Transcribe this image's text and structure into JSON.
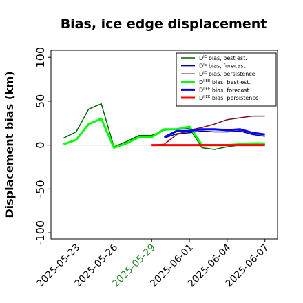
{
  "chart_data": {
    "type": "line",
    "title": "Bias, ice edge displacement",
    "ylabel": "Displacement bias (km)",
    "xlabel": "",
    "xlim": [
      "2025-05-21",
      "2025-06-08"
    ],
    "ylim": [
      -107,
      108
    ],
    "yticks": [
      -100,
      -50,
      0,
      50,
      100
    ],
    "xticks": [
      {
        "date": "2025-05-23",
        "label": "2025-05-23",
        "color": "#000000"
      },
      {
        "date": "2025-05-26",
        "label": "2025-05-26",
        "color": "#000000"
      },
      {
        "date": "2025-05-29",
        "label": "2025-05-29",
        "color": "#228b22"
      },
      {
        "date": "2025-06-01",
        "label": "2025-06-01",
        "color": "#000000"
      },
      {
        "date": "2025-06-04",
        "label": "2025-06-04",
        "color": "#000000"
      },
      {
        "date": "2025-06-07",
        "label": "2025-06-07",
        "color": "#000000"
      }
    ],
    "zero_line": {
      "from": "2025-05-22",
      "to": "2025-06-07",
      "color": "#808080"
    },
    "legend_position": "top-right",
    "grid": false,
    "series": [
      {
        "name": "D^IE bias, best est.",
        "legend_sup": "IE",
        "legend_text": "bias, best est.",
        "color": "#006400",
        "width": 1.5,
        "x": [
          "2025-05-22",
          "2025-05-23",
          "2025-05-24",
          "2025-05-25",
          "2025-05-26",
          "2025-05-27",
          "2025-05-28",
          "2025-05-29",
          "2025-05-30",
          "2025-05-31",
          "2025-06-01",
          "2025-06-02",
          "2025-06-03",
          "2025-06-04",
          "2025-06-05",
          "2025-06-06",
          "2025-06-07"
        ],
        "y": [
          8,
          15,
          41,
          47,
          -2,
          4,
          11,
          11,
          17,
          18,
          19,
          -3,
          -5,
          -2,
          0,
          1,
          1
        ]
      },
      {
        "name": "D^IE bias, forecast",
        "legend_sup": "IE",
        "legend_text": "bias, forecast",
        "color": "#00008b",
        "width": 1.5,
        "x": [
          "2025-05-30",
          "2025-05-31",
          "2025-06-01",
          "2025-06-02",
          "2025-06-03",
          "2025-06-04",
          "2025-06-05",
          "2025-06-06",
          "2025-06-07"
        ],
        "y": [
          8,
          13,
          14,
          16,
          15,
          15,
          16,
          12,
          10
        ]
      },
      {
        "name": "D^IE bias, persistence",
        "legend_sup": "IE",
        "legend_text": "bias, persistence",
        "color": "#7b0b1d",
        "width": 1.5,
        "x": [
          "2025-05-29",
          "2025-05-30",
          "2025-05-31",
          "2025-06-01",
          "2025-06-02",
          "2025-06-03",
          "2025-06-04",
          "2025-06-05",
          "2025-06-06",
          "2025-06-07"
        ],
        "y": [
          0,
          1,
          12,
          17,
          20,
          24,
          29,
          31,
          33,
          33
        ]
      },
      {
        "name": "D^IIEE bias, best est.",
        "legend_sup": "IIEE",
        "legend_text": "bias, best est.",
        "color": "#00ff00",
        "width": 3,
        "x": [
          "2025-05-22",
          "2025-05-23",
          "2025-05-24",
          "2025-05-25",
          "2025-05-26",
          "2025-05-27",
          "2025-05-28",
          "2025-05-29",
          "2025-05-30",
          "2025-05-31",
          "2025-06-01",
          "2025-06-02",
          "2025-06-03",
          "2025-06-04",
          "2025-06-05",
          "2025-06-06",
          "2025-06-07"
        ],
        "y": [
          1,
          6,
          24,
          30,
          -3,
          2,
          9,
          9,
          18,
          18,
          21,
          0,
          0,
          0,
          1,
          2,
          2
        ]
      },
      {
        "name": "D^IIEE bias, forecast",
        "legend_sup": "IIEE",
        "legend_text": "bias, forecast",
        "color": "#0000ff",
        "width": 3,
        "x": [
          "2025-05-30",
          "2025-05-31",
          "2025-06-01",
          "2025-06-02",
          "2025-06-03",
          "2025-06-04",
          "2025-06-05",
          "2025-06-06",
          "2025-06-07"
        ],
        "y": [
          9,
          16,
          16,
          18,
          18,
          17,
          18,
          14,
          12
        ]
      },
      {
        "name": "D^IIEE bias, persistence",
        "legend_sup": "IIEE",
        "legend_text": "bias, persistence",
        "color": "#ff0000",
        "width": 3,
        "x": [
          "2025-05-29",
          "2025-05-30",
          "2025-05-31",
          "2025-06-01",
          "2025-06-02",
          "2025-06-03",
          "2025-06-04",
          "2025-06-05",
          "2025-06-06",
          "2025-06-07"
        ],
        "y": [
          0,
          0,
          0,
          0,
          0,
          0,
          0,
          0,
          0,
          0
        ]
      }
    ]
  }
}
